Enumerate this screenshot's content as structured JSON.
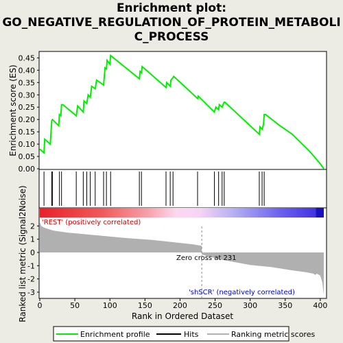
{
  "title_lines": [
    "Enrichment plot:",
    "GO_NEGATIVE_REGULATION_OF_PROTEIN_METABOLI",
    "C_PROCESS"
  ],
  "colors": {
    "es_line": "#00ee00",
    "hit": "#000000",
    "metric_fill": "#b0b0b0",
    "pos_label": "#cc0000",
    "neg_label": "#0000cc",
    "background": "#ecebe4"
  },
  "chart_data": {
    "type": "line",
    "es_panel": {
      "ylabel": "Enrichment score (ES)",
      "ylim": [
        0,
        0.48
      ],
      "yticks": [
        0.0,
        0.05,
        0.1,
        0.15,
        0.2,
        0.25,
        0.3,
        0.35,
        0.4,
        0.45
      ],
      "series": [
        {
          "name": "Enrichment profile",
          "x": [
            0,
            6,
            7,
            15,
            17,
            18,
            27,
            28,
            30,
            31,
            33,
            52,
            54,
            62,
            63,
            67,
            69,
            72,
            74,
            79,
            81,
            91,
            93,
            95,
            96,
            100,
            101,
            142,
            143,
            145,
            146,
            180,
            181,
            186,
            187,
            190,
            191,
            225,
            226,
            249,
            251,
            255,
            256,
            260,
            262,
            263,
            264,
            313,
            314,
            317,
            319,
            320,
            322,
            340,
            360,
            385,
            400,
            405
          ],
          "y": [
            0.08,
            0.065,
            0.12,
            0.1,
            0.195,
            0.2,
            0.175,
            0.22,
            0.215,
            0.26,
            0.26,
            0.215,
            0.255,
            0.23,
            0.275,
            0.265,
            0.3,
            0.29,
            0.335,
            0.325,
            0.36,
            0.34,
            0.41,
            0.405,
            0.44,
            0.425,
            0.46,
            0.365,
            0.395,
            0.39,
            0.415,
            0.33,
            0.35,
            0.335,
            0.36,
            0.37,
            0.375,
            0.285,
            0.295,
            0.23,
            0.25,
            0.24,
            0.26,
            0.25,
            0.265,
            0.27,
            0.27,
            0.14,
            0.17,
            0.16,
            0.18,
            0.22,
            0.22,
            0.18,
            0.14,
            0.07,
            0.02,
            0.0
          ]
        }
      ]
    },
    "hits": {
      "name": "Hits",
      "x": [
        6,
        17,
        18,
        28,
        31,
        52,
        62,
        67,
        72,
        79,
        91,
        95,
        101,
        142,
        145,
        180,
        186,
        190,
        225,
        249,
        255,
        260,
        263,
        313,
        317,
        320
      ]
    },
    "metric_panel": {
      "ylabel": "Ranked list metric (Signal2Noise)",
      "xlabel": "Rank in Ordered Dataset",
      "ylim": [
        -3.5,
        2.5
      ],
      "yticks": [
        -3,
        -2,
        -1,
        0,
        1,
        2
      ],
      "xlim": [
        0,
        425
      ],
      "xticks": [
        0,
        50,
        100,
        150,
        200,
        250,
        300,
        350,
        400
      ],
      "series": [
        {
          "name": "Ranking metric scores",
          "x": [
            0,
            2,
            5,
            10,
            20,
            40,
            80,
            120,
            160,
            200,
            220,
            231,
            231,
            240,
            260,
            280,
            300,
            330,
            360,
            380,
            390,
            393,
            395,
            400,
            403,
            405
          ],
          "y": [
            2.3,
            2.0,
            1.9,
            1.8,
            1.65,
            1.5,
            1.3,
            1.1,
            0.95,
            0.72,
            0.6,
            0.5,
            -0.15,
            -0.3,
            -0.55,
            -0.75,
            -0.95,
            -1.1,
            -1.35,
            -1.5,
            -1.6,
            -1.7,
            -1.6,
            -1.75,
            -2.3,
            -3.2
          ]
        }
      ],
      "zero_cross_label": "Zero cross at 231",
      "pos_label": "'REST' (positively correlated)",
      "neg_label": "'shSCR' (negatively correlated)"
    },
    "legend": {
      "position": "bottom",
      "items": [
        {
          "label": "Enrichment profile",
          "swatch": "green-line"
        },
        {
          "label": "Hits",
          "swatch": "black-line"
        },
        {
          "label": "Ranking metric scores",
          "swatch": "gray-line"
        }
      ]
    }
  }
}
